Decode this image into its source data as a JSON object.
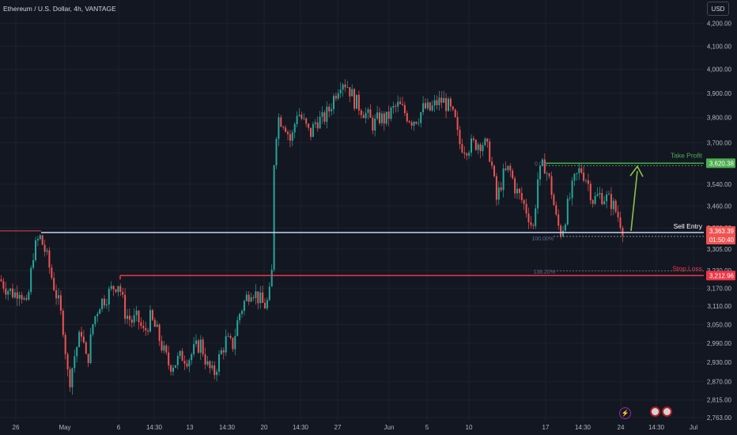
{
  "header": {
    "title": "Ethereum / U.S. Dollar, 4h, VANTAGE",
    "currency_button": "USD"
  },
  "icons": {
    "event_icon": "bolt-icon",
    "flag_icons": [
      "us-flag-icon",
      "us-flag-icon"
    ]
  },
  "colors": {
    "background": "#131722",
    "up": "#26a69a",
    "down": "#ef5350",
    "take_profit": "#4caf50",
    "stop_loss": "#f23645",
    "sell_entry": "#c5d4f0",
    "arrow": "#8bc34a"
  },
  "chart_data": {
    "type": "candlestick",
    "y_axis": {
      "scale": "log",
      "ticks": [
        "4,200.00",
        "4,100.00",
        "4,000.00",
        "3,900.00",
        "3,800.00",
        "3,700.00",
        "3,540.00",
        "3,460.00",
        "3,380.00",
        "3,305.00",
        "3,230.00",
        "3,170.00",
        "3,110.00",
        "3,050.00",
        "2,990.00",
        "2,930.00",
        "2,870.00",
        "2,815.00",
        "2,763.00"
      ],
      "ylim": [
        2735,
        4270
      ]
    },
    "x_axis": {
      "ticks": [
        "26",
        "May",
        "6",
        "14:30",
        "13",
        "14:30",
        "20",
        "14:30",
        "27",
        "Jun",
        "5",
        "10",
        "17",
        "14:30",
        "24",
        "14:30",
        "Jul"
      ]
    },
    "levels": [
      {
        "name": "Take Profit",
        "price": 3620.38,
        "label": "3,620.38"
      },
      {
        "name": "Sell Entry",
        "price": 3363.39,
        "label": "3,363.39",
        "countdown": "01:50:40"
      },
      {
        "name": "Stop Loss",
        "price": 3212.96,
        "label": "3,212.96"
      }
    ],
    "fib_labels": [
      {
        "text": "0.0%",
        "price": 3620.38
      },
      {
        "text": "100.00%",
        "price": 3344
      },
      {
        "text": "138.20%",
        "price": 3228
      }
    ],
    "path": [
      [
        0,
        3200
      ],
      [
        8,
        3170
      ],
      [
        18,
        3150
      ],
      [
        25,
        3170
      ],
      [
        34,
        3100
      ],
      [
        42,
        3290
      ],
      [
        50,
        3350
      ],
      [
        58,
        3290
      ],
      [
        66,
        3200
      ],
      [
        74,
        3120
      ],
      [
        80,
        3040
      ],
      [
        87,
        2860
      ],
      [
        95,
        2960
      ],
      [
        103,
        3030
      ],
      [
        110,
        2920
      ],
      [
        118,
        3060
      ],
      [
        126,
        3120
      ],
      [
        134,
        3140
      ],
      [
        142,
        3170
      ],
      [
        150,
        3190
      ],
      [
        158,
        3090
      ],
      [
        166,
        3060
      ],
      [
        174,
        3070
      ],
      [
        182,
        3020
      ],
      [
        190,
        3070
      ],
      [
        198,
        3030
      ],
      [
        206,
        2970
      ],
      [
        214,
        2920
      ],
      [
        222,
        2930
      ],
      [
        230,
        2950
      ],
      [
        238,
        2940
      ],
      [
        246,
        2970
      ],
      [
        254,
        2990
      ],
      [
        262,
        2920
      ],
      [
        270,
        2890
      ],
      [
        278,
        2950
      ],
      [
        286,
        3000
      ],
      [
        294,
        2980
      ],
      [
        302,
        3080
      ],
      [
        310,
        3130
      ],
      [
        318,
        3170
      ],
      [
        326,
        3140
      ],
      [
        334,
        3110
      ],
      [
        340,
        3130
      ],
      [
        344,
        3230
      ],
      [
        347,
        3690
      ],
      [
        352,
        3800
      ],
      [
        360,
        3780
      ],
      [
        368,
        3700
      ],
      [
        376,
        3830
      ],
      [
        384,
        3780
      ],
      [
        392,
        3730
      ],
      [
        400,
        3790
      ],
      [
        408,
        3790
      ],
      [
        416,
        3830
      ],
      [
        424,
        3900
      ],
      [
        432,
        3960
      ],
      [
        440,
        3930
      ],
      [
        448,
        3870
      ],
      [
        456,
        3840
      ],
      [
        464,
        3810
      ],
      [
        472,
        3770
      ],
      [
        480,
        3800
      ],
      [
        488,
        3790
      ],
      [
        496,
        3830
      ],
      [
        504,
        3850
      ],
      [
        512,
        3820
      ],
      [
        520,
        3790
      ],
      [
        528,
        3800
      ],
      [
        536,
        3840
      ],
      [
        544,
        3830
      ],
      [
        552,
        3860
      ],
      [
        560,
        3870
      ],
      [
        568,
        3840
      ],
      [
        576,
        3780
      ],
      [
        580,
        3700
      ],
      [
        588,
        3680
      ],
      [
        596,
        3690
      ],
      [
        604,
        3700
      ],
      [
        612,
        3700
      ],
      [
        620,
        3650
      ],
      [
        628,
        3480
      ],
      [
        636,
        3570
      ],
      [
        644,
        3600
      ],
      [
        652,
        3520
      ],
      [
        660,
        3480
      ],
      [
        668,
        3430
      ],
      [
        674,
        3370
      ],
      [
        680,
        3560
      ],
      [
        688,
        3620
      ],
      [
        696,
        3540
      ],
      [
        704,
        3400
      ],
      [
        710,
        3360
      ],
      [
        718,
        3460
      ],
      [
        726,
        3550
      ],
      [
        734,
        3600
      ],
      [
        742,
        3560
      ],
      [
        750,
        3480
      ],
      [
        758,
        3500
      ],
      [
        766,
        3490
      ],
      [
        774,
        3470
      ],
      [
        782,
        3420
      ],
      [
        790,
        3363
      ]
    ]
  }
}
